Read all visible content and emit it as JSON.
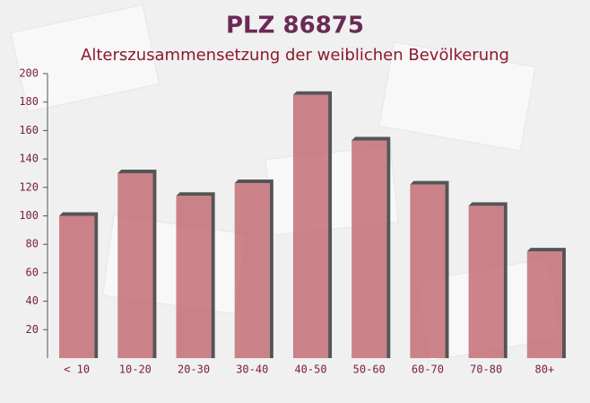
{
  "chart_data": {
    "type": "bar",
    "title": "PLZ 86875",
    "subtitle": "Alterszusammensetzung der weiblichen Bevölkerung",
    "categories": [
      "< 10",
      "10-20",
      "20-30",
      "30-40",
      "40-50",
      "50-60",
      "60-70",
      "70-80",
      "80+"
    ],
    "values": [
      100,
      130,
      114,
      123,
      185,
      153,
      122,
      107,
      75
    ],
    "color": "#c0666e",
    "ylim": [
      0,
      200
    ],
    "yticks": [
      20,
      40,
      60,
      80,
      100,
      120,
      140,
      160,
      180,
      200
    ]
  }
}
